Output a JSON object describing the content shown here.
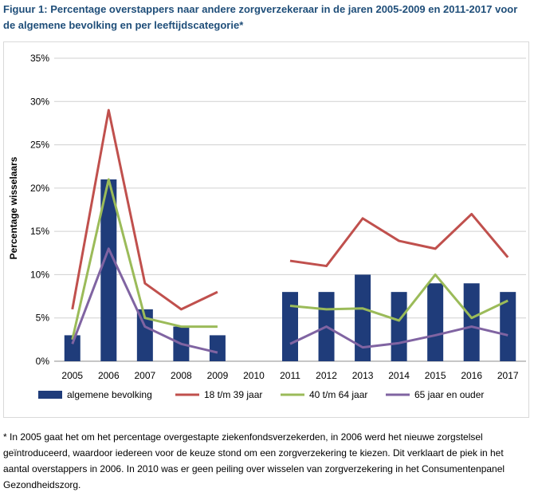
{
  "figure_title": "Figuur 1: Percentage overstappers naar andere zorgverzekeraar in de jaren 2005-2009 en 2011-2017 voor de algemene bevolking en per leeftijdscategorie*",
  "footnote": "* In 2005 gaat het om het percentage overgestapte ziekenfondsverzekerden, in 2006 werd het nieuwe zorgstelsel geïntroduceerd, waardoor iedereen voor de keuze stond om een zorgverzekering te kiezen. Dit verklaart de piek in het aantal overstappers in 2006. In 2010 was er geen peiling over wisselen van zorgverzekering in het Consumentenpanel Gezondheidszorg.",
  "chart_data": {
    "type": "bar",
    "categories": [
      "2005",
      "2006",
      "2007",
      "2008",
      "2009",
      "2010",
      "2011",
      "2012",
      "2013",
      "2014",
      "2015",
      "2016",
      "2017"
    ],
    "ylabel": "Percentage wisselaars",
    "ylim": [
      0,
      35
    ],
    "yticks": [
      0,
      5,
      10,
      15,
      20,
      25,
      30,
      35
    ],
    "ytick_labels": [
      "0%",
      "5%",
      "10%",
      "15%",
      "20%",
      "25%",
      "30%",
      "35%"
    ],
    "grid": true,
    "legend_position": "bottom",
    "series": [
      {
        "name": "algemene bevolking",
        "kind": "bar",
        "color": "#1f3c7a",
        "values": [
          3,
          21,
          6,
          4,
          3,
          null,
          8,
          8,
          10,
          8,
          9,
          9,
          8
        ]
      },
      {
        "name": "18 t/m 39 jaar",
        "kind": "line",
        "color": "#c0504d",
        "values": [
          6,
          29,
          9,
          6,
          8,
          null,
          11.6,
          11,
          16.5,
          13.9,
          13,
          17,
          12
        ]
      },
      {
        "name": "40 t/m 64 jaar",
        "kind": "line",
        "color": "#9bbb59",
        "values": [
          2.5,
          21,
          5,
          4,
          4,
          null,
          6.4,
          6,
          6.1,
          4.7,
          10,
          5,
          7
        ]
      },
      {
        "name": "65 jaar en ouder",
        "kind": "line",
        "color": "#8064a2",
        "values": [
          2,
          13,
          4,
          2,
          1,
          null,
          2,
          4,
          1.6,
          2.1,
          3,
          4,
          3
        ]
      }
    ]
  }
}
